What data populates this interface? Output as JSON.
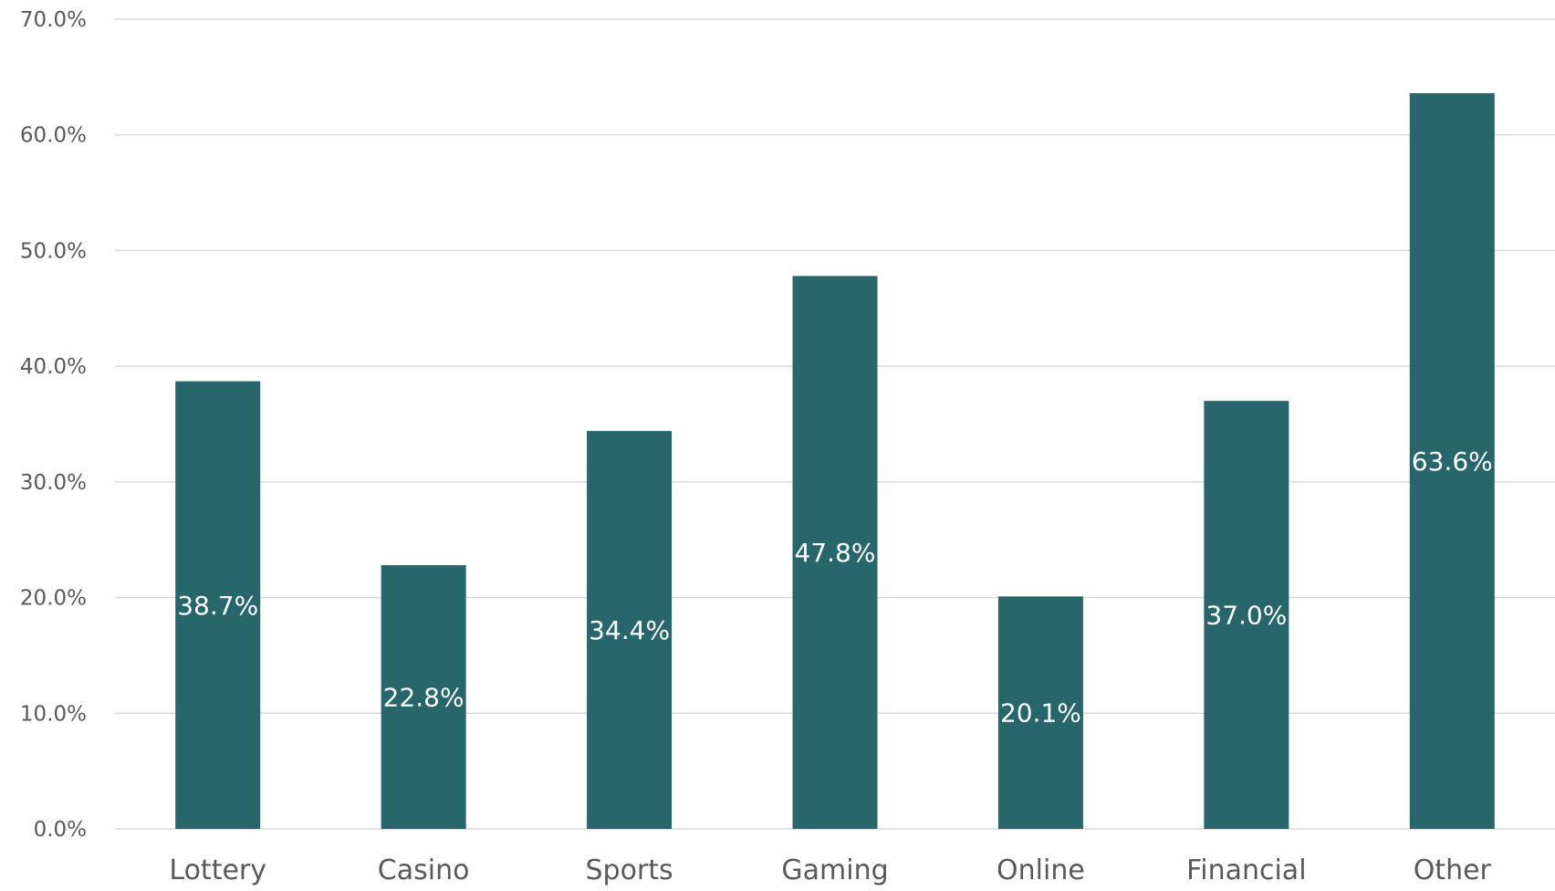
{
  "colors": {
    "bar": "#27666b",
    "grid": "#d9d9d9",
    "text": "#595959",
    "label": "#ffffff"
  },
  "chart_data": {
    "type": "bar",
    "categories": [
      "Lottery",
      "Casino",
      "Sports",
      "Gaming",
      "Online",
      "Financial",
      "Other"
    ],
    "values": [
      38.7,
      22.8,
      34.4,
      47.8,
      20.1,
      37.0,
      63.6
    ],
    "data_labels": [
      "38.7%",
      "22.8%",
      "34.4%",
      "47.8%",
      "20.1%",
      "37.0%",
      "63.6%"
    ],
    "title": "",
    "xlabel": "",
    "ylabel": "",
    "ylim": [
      0,
      70
    ],
    "y_ticks": [
      0,
      10,
      20,
      30,
      40,
      50,
      60,
      70
    ],
    "y_tick_labels": [
      "0.0%",
      "10.0%",
      "20.0%",
      "30.0%",
      "40.0%",
      "50.0%",
      "60.0%",
      "70.0%"
    ],
    "grid": true,
    "legend": "none"
  }
}
